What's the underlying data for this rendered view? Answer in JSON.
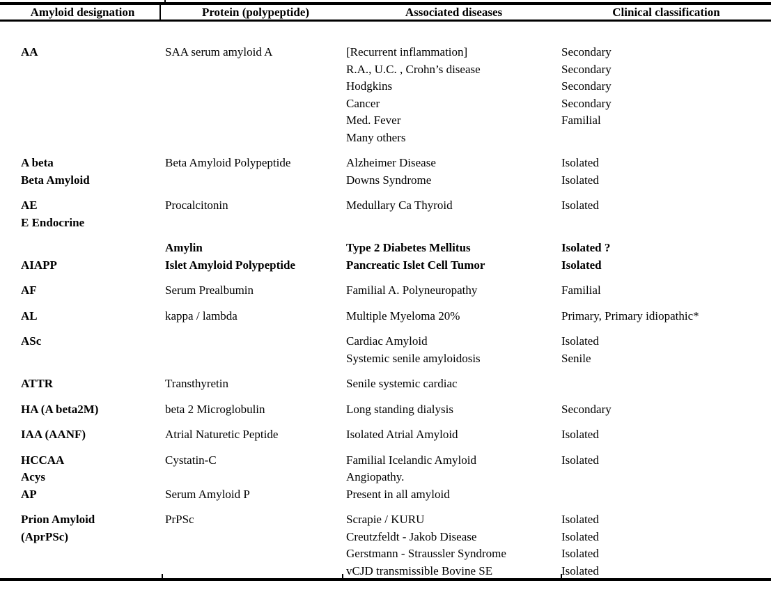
{
  "table": {
    "columns": [
      "Amyloid designation",
      "Protein (polypeptide)",
      "Associated diseases",
      "Clinical classification"
    ],
    "groups": [
      {
        "rows": [
          {
            "cells": [
              "AA",
              "SAA serum amyloid A",
              "[Recurrent inflammation]",
              "Secondary"
            ],
            "bold": [
              1,
              0,
              0,
              0
            ]
          },
          {
            "cells": [
              "",
              "",
              "R.A., U.C. , Crohn’s disease",
              "Secondary"
            ],
            "bold": [
              0,
              0,
              0,
              0
            ]
          },
          {
            "cells": [
              "",
              "",
              "Hodgkins",
              "Secondary"
            ],
            "bold": [
              0,
              0,
              0,
              0
            ]
          },
          {
            "cells": [
              "",
              "",
              "Cancer",
              "Secondary"
            ],
            "bold": [
              0,
              0,
              0,
              0
            ]
          },
          {
            "cells": [
              "",
              "",
              "Med. Fever",
              "Familial"
            ],
            "bold": [
              0,
              0,
              0,
              0
            ]
          },
          {
            "cells": [
              "",
              "",
              "Many others",
              ""
            ],
            "bold": [
              0,
              0,
              0,
              0
            ]
          }
        ]
      },
      {
        "rows": [
          {
            "cells": [
              "A beta",
              "Beta Amyloid Polypeptide",
              "Alzheimer Disease",
              "Isolated"
            ],
            "bold": [
              1,
              0,
              0,
              0
            ]
          },
          {
            "cells": [
              "Beta Amyloid",
              "",
              "Downs Syndrome",
              "Isolated"
            ],
            "bold": [
              1,
              0,
              0,
              0
            ]
          }
        ]
      },
      {
        "rows": [
          {
            "cells": [
              "AE",
              "Procalcitonin",
              "Medullary Ca Thyroid",
              "Isolated"
            ],
            "bold": [
              1,
              0,
              0,
              0
            ]
          },
          {
            "cells": [
              "E Endocrine",
              "",
              "",
              ""
            ],
            "bold": [
              1,
              0,
              0,
              0
            ]
          }
        ]
      },
      {
        "rows": [
          {
            "cells": [
              "",
              "Amylin",
              "Type 2 Diabetes Mellitus",
              "Isolated ?"
            ],
            "bold": [
              1,
              1,
              1,
              1
            ]
          },
          {
            "cells": [
              "AIAPP",
              "Islet Amyloid Polypeptide",
              "Pancreatic Islet Cell Tumor",
              "Isolated"
            ],
            "bold": [
              1,
              1,
              1,
              1
            ]
          }
        ]
      },
      {
        "rows": [
          {
            "cells": [
              "AF",
              "Serum Prealbumin",
              "Familial A. Polyneuropathy",
              "Familial"
            ],
            "bold": [
              1,
              0,
              0,
              0
            ]
          }
        ]
      },
      {
        "rows": [
          {
            "cells": [
              "AL",
              "kappa / lambda",
              "Multiple Myeloma 20%",
              "Primary, Primary idiopathic*"
            ],
            "bold": [
              1,
              0,
              0,
              0
            ]
          }
        ]
      },
      {
        "rows": [
          {
            "cells": [
              "ASc",
              "",
              "Cardiac Amyloid",
              "Isolated"
            ],
            "bold": [
              1,
              0,
              0,
              0
            ]
          },
          {
            "cells": [
              "",
              "",
              "Systemic senile amyloidosis",
              "Senile"
            ],
            "bold": [
              0,
              0,
              0,
              0
            ]
          }
        ]
      },
      {
        "rows": [
          {
            "cells": [
              "ATTR",
              "Transthyretin",
              "Senile systemic cardiac",
              ""
            ],
            "bold": [
              1,
              0,
              0,
              0
            ]
          }
        ]
      },
      {
        "rows": [
          {
            "cells": [
              "HA (A beta2M)",
              "beta 2 Microglobulin",
              "Long standing dialysis",
              "Secondary"
            ],
            "bold": [
              1,
              0,
              0,
              0
            ]
          }
        ]
      },
      {
        "rows": [
          {
            "cells": [
              "IAA (AANF)",
              "Atrial Naturetic Peptide",
              "Isolated Atrial Amyloid",
              "Isolated"
            ],
            "bold": [
              1,
              0,
              0,
              0
            ]
          }
        ]
      },
      {
        "rows": [
          {
            "cells": [
              "HCCAA",
              "Cystatin-C",
              "Familial Icelandic Amyloid",
              "Isolated"
            ],
            "bold": [
              1,
              0,
              0,
              0
            ]
          },
          {
            "cells": [
              "Acys",
              "",
              "Angiopathy.",
              ""
            ],
            "bold": [
              1,
              0,
              0,
              0
            ]
          },
          {
            "cells": [
              "AP",
              "Serum Amyloid P",
              "Present in all amyloid",
              ""
            ],
            "bold": [
              1,
              0,
              0,
              0
            ]
          }
        ]
      },
      {
        "rows": [
          {
            "cells": [
              "Prion Amyloid",
              "PrPSc",
              "Scrapie / KURU",
              "Isolated"
            ],
            "bold": [
              1,
              0,
              0,
              0
            ]
          },
          {
            "cells": [
              "(AprPSc)",
              "",
              "Creutzfeldt - Jakob Disease",
              "Isolated"
            ],
            "bold": [
              1,
              0,
              0,
              0
            ]
          },
          {
            "cells": [
              "",
              "",
              "Gerstmann - Straussler Syndrome",
              "Isolated"
            ],
            "bold": [
              0,
              0,
              0,
              0
            ]
          },
          {
            "cells": [
              "",
              "",
              "vCJD transmissible Bovine SE",
              "Isolated"
            ],
            "bold": [
              0,
              0,
              0,
              0
            ]
          }
        ]
      }
    ],
    "colors": {
      "text": "#000000",
      "background": "#ffffff",
      "rule": "#000000"
    }
  }
}
